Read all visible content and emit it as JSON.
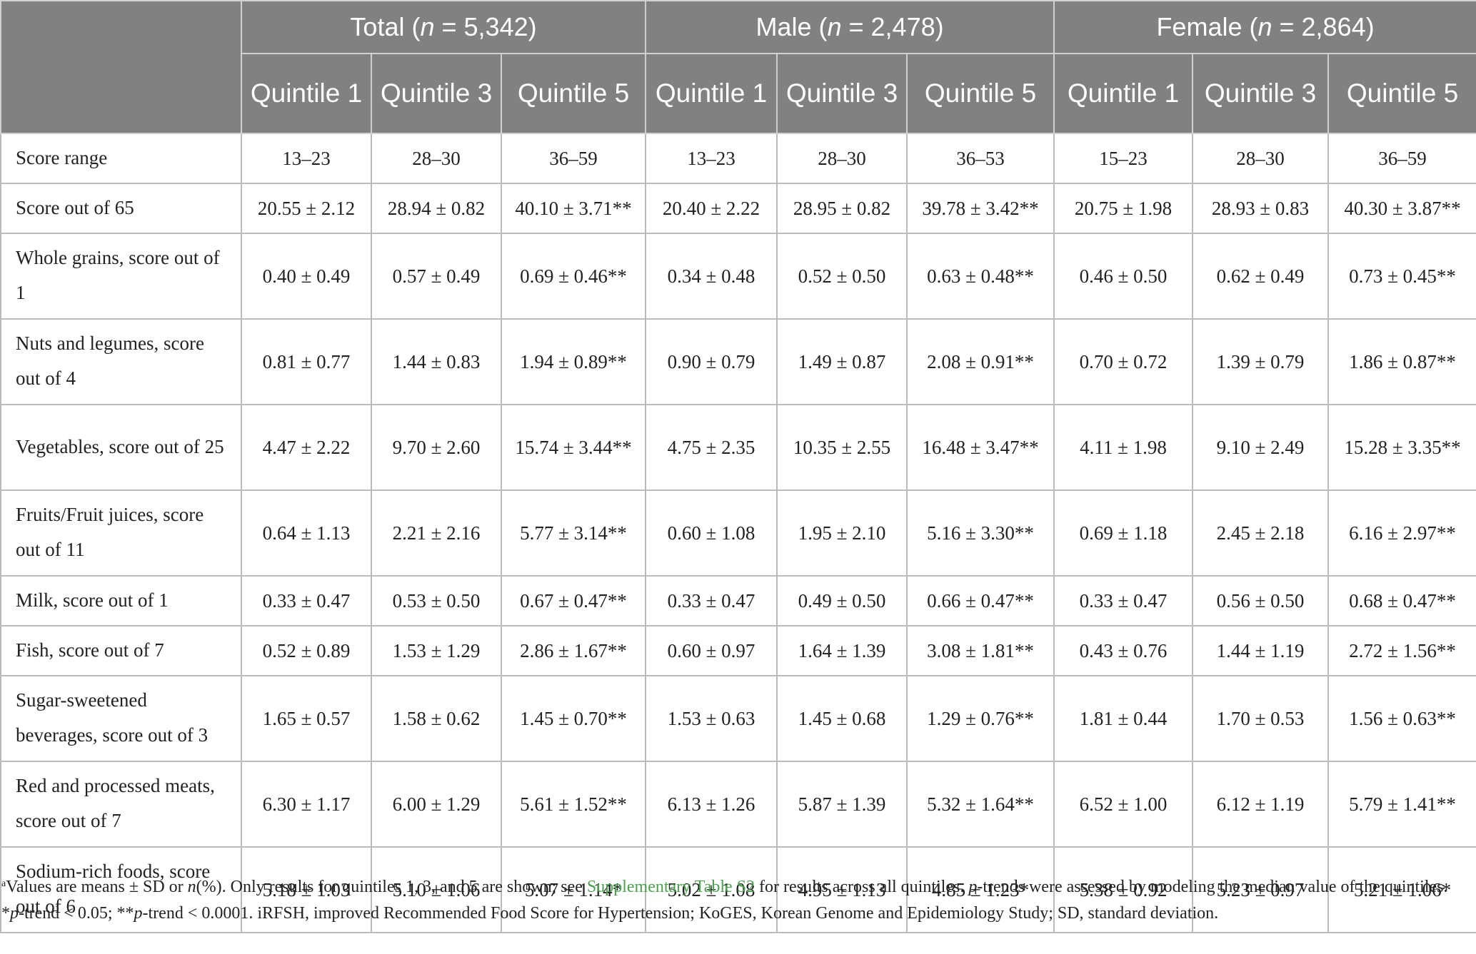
{
  "groups": [
    {
      "label": "Total (",
      "n_symbol": "n",
      "n_value": " = 5,342)"
    },
    {
      "label": "Male (",
      "n_symbol": "n",
      "n_value": " = 2,478)"
    },
    {
      "label": "Female (",
      "n_symbol": "n",
      "n_value": " = 2,864)"
    }
  ],
  "quintile_headers": [
    "Quintile 1",
    "Quintile 3",
    "Quintile 5",
    "Quintile 1",
    "Quintile 3",
    "Quintile 5",
    "Quintile 1",
    "Quintile 3",
    "Quintile 5"
  ],
  "rows": [
    {
      "label": "Score range",
      "values": [
        "13–23",
        "28–30",
        "36–59",
        "13–23",
        "28–30",
        "36–53",
        "15–23",
        "28–30",
        "36–59"
      ]
    },
    {
      "label": "Score out of 65",
      "values": [
        "20.55 ± 2.12",
        "28.94 ± 0.82",
        "40.10 ± 3.71**",
        "20.40 ± 2.22",
        "28.95 ± 0.82",
        "39.78 ± 3.42**",
        "20.75 ± 1.98",
        "28.93 ± 0.83",
        "40.30 ± 3.87**"
      ]
    },
    {
      "label": "Whole grains, score out of 1",
      "values": [
        "0.40 ± 0.49",
        "0.57 ± 0.49",
        "0.69 ± 0.46**",
        "0.34 ± 0.48",
        "0.52 ± 0.50",
        "0.63 ± 0.48**",
        "0.46 ± 0.50",
        "0.62 ± 0.49",
        "0.73 ± 0.45**"
      ]
    },
    {
      "label": "Nuts and legumes, score out of 4",
      "values": [
        "0.81 ± 0.77",
        "1.44 ± 0.83",
        "1.94 ± 0.89**",
        "0.90 ± 0.79",
        "1.49 ± 0.87",
        "2.08 ± 0.91**",
        "0.70 ± 0.72",
        "1.39 ± 0.79",
        "1.86 ± 0.87**"
      ]
    },
    {
      "label": "Vegetables, score out of 25",
      "values": [
        "4.47 ± 2.22",
        "9.70 ± 2.60",
        "15.74 ± 3.44**",
        "4.75 ± 2.35",
        "10.35 ± 2.55",
        "16.48 ± 3.47**",
        "4.11 ± 1.98",
        "9.10 ± 2.49",
        "15.28 ± 3.35**"
      ]
    },
    {
      "label": "Fruits/Fruit juices, score out of 11",
      "values": [
        "0.64 ± 1.13",
        "2.21 ± 2.16",
        "5.77 ± 3.14**",
        "0.60 ± 1.08",
        "1.95 ± 2.10",
        "5.16 ± 3.30**",
        "0.69 ± 1.18",
        "2.45 ± 2.18",
        "6.16 ± 2.97**"
      ]
    },
    {
      "label": "Milk, score out of 1",
      "values": [
        "0.33 ± 0.47",
        "0.53 ± 0.50",
        "0.67 ± 0.47**",
        "0.33 ± 0.47",
        "0.49 ± 0.50",
        "0.66 ± 0.47**",
        "0.33 ± 0.47",
        "0.56 ± 0.50",
        "0.68 ± 0.47**"
      ]
    },
    {
      "label": "Fish, score out of 7",
      "values": [
        "0.52 ± 0.89",
        "1.53 ± 1.29",
        "2.86 ± 1.67**",
        "0.60 ± 0.97",
        "1.64 ± 1.39",
        "3.08 ± 1.81**",
        "0.43 ± 0.76",
        "1.44 ± 1.19",
        "2.72 ± 1.56**"
      ]
    },
    {
      "label": "Sugar-sweetened beverages, score out of 3",
      "values": [
        "1.65 ± 0.57",
        "1.58 ± 0.62",
        "1.45 ± 0.70**",
        "1.53 ± 0.63",
        "1.45 ± 0.68",
        "1.29 ± 0.76**",
        "1.81 ± 0.44",
        "1.70 ± 0.53",
        "1.56 ± 0.63**"
      ]
    },
    {
      "label": "Red and processed meats, score out of 7",
      "values": [
        "6.30 ± 1.17",
        "6.00 ± 1.29",
        "5.61 ± 1.52**",
        "6.13 ± 1.26",
        "5.87 ± 1.39",
        "5.32 ± 1.64**",
        "6.52 ± 1.00",
        "6.12 ± 1.19",
        "5.79 ± 1.41**"
      ]
    },
    {
      "label": "Sodium-rich foods, score out of 6",
      "values": [
        "5.18 ± 1.03",
        "5.10 ± 1.06",
        "5.07 ± 1.14*",
        "5.02 ± 1.08",
        "4.95 ± 1.13",
        "4.85 ± 1.23*",
        "5.38 ± 0.92",
        "5.23 ± 0.97",
        "5.21 ± 1.06*"
      ]
    }
  ],
  "footnote": {
    "marker": "a",
    "p1": "Values are means ± SD or ",
    "p1_n": "n",
    "p2": "(%). Only results for quintiles 1, 3, and 5 are shown; see ",
    "link": "Supplementary Table S2",
    "p3": " for results across all quintiles. ",
    "p3_p": "p",
    "p4": "-trends were assessed by modeling the median value of the quintiles. *",
    "p4_p": "p",
    "p5": "-trend < 0.05; **",
    "p5_p": "p",
    "p6": "-trend < 0.0001. iRFSH, improved Recommended Food Score for Hypertension; KoGES, Korean Genome and Epidemiology Study; SD, standard deviation."
  }
}
